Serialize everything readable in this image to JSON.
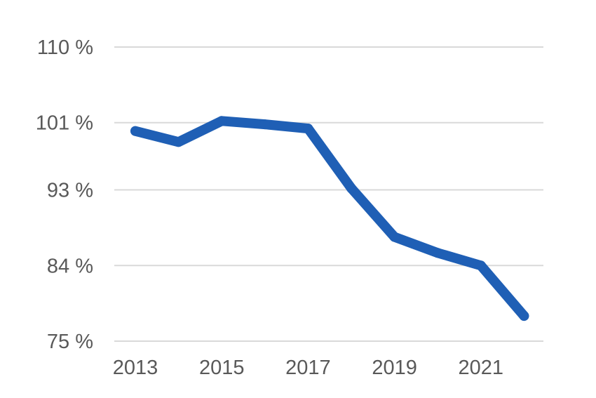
{
  "chart_data": {
    "type": "line",
    "title": "",
    "xlabel": "",
    "ylabel": "",
    "x": [
      2013,
      2014,
      2015,
      2016,
      2017,
      2018,
      2019,
      2020,
      2021,
      2022
    ],
    "series": [
      {
        "values": [
          100.0,
          98.7,
          101.2,
          100.8,
          100.3,
          93.2,
          87.4,
          85.5,
          84.0,
          78.0
        ]
      }
    ],
    "y_ticks": [
      75,
      84,
      93,
      101,
      110
    ],
    "y_tick_labels": [
      "75 %",
      "84 %",
      "93 %",
      "101 %",
      "110 %"
    ],
    "x_tick_labels": [
      "2013",
      "2015",
      "2017",
      "2019",
      "2021"
    ],
    "ylim": [
      75,
      110
    ],
    "grid": true,
    "legend": "none",
    "colors": {
      "line": "#1f5fb5",
      "grid": "#d9d9d9",
      "text": "#595959"
    }
  }
}
